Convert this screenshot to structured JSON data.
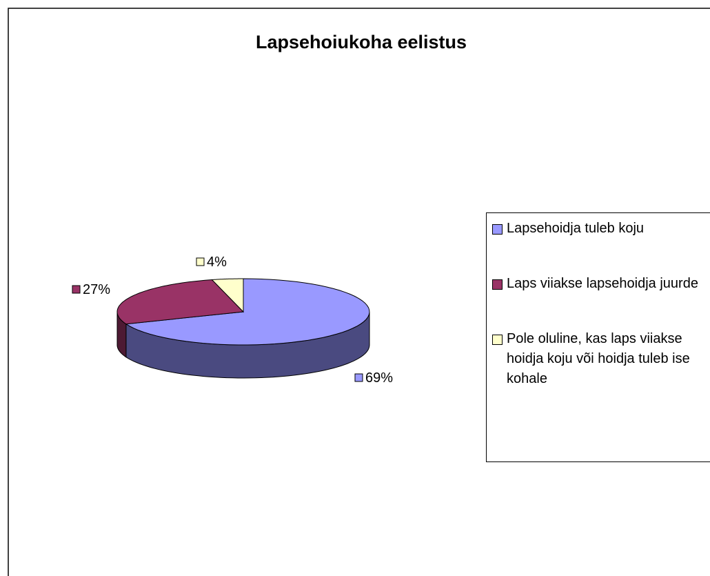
{
  "chart_data": {
    "type": "pie",
    "title": "Lapsehoiukoha eelistus",
    "categories": [
      "Lapsehoidja tuleb koju",
      "Laps viiakse lapsehoidja juurde",
      "Pole oluline, kas laps viiakse hoidja koju või hoidja tuleb ise kohale"
    ],
    "values": [
      69,
      27,
      4
    ],
    "value_labels": [
      "69%",
      "27%",
      "4%"
    ],
    "colors": [
      "#9999ff",
      "#993366",
      "#ffffcc"
    ],
    "side_colors": [
      "#4a4a80",
      "#4d1a33",
      "#80806a"
    ],
    "three_d": true
  }
}
